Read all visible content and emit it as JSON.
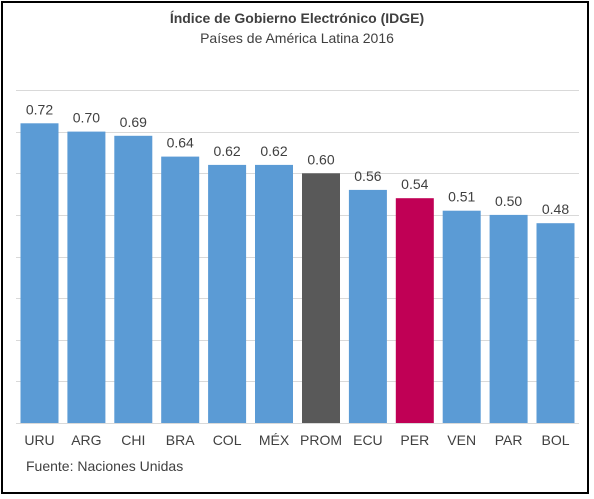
{
  "chart_data": {
    "type": "bar",
    "title": "Índice de Gobierno Electrónico (IDGE)",
    "subtitle": "Países de América Latina 2016",
    "source": "Fuente: Naciones Unidas",
    "categories": [
      "URU",
      "ARG",
      "CHI",
      "BRA",
      "COL",
      "MÉX",
      "PROM",
      "ECU",
      "PER",
      "VEN",
      "PAR",
      "BOL"
    ],
    "values": [
      0.72,
      0.7,
      0.69,
      0.64,
      0.62,
      0.62,
      0.6,
      0.56,
      0.54,
      0.51,
      0.5,
      0.48
    ],
    "value_labels": [
      "0.72",
      "0.70",
      "0.69",
      "0.64",
      "0.62",
      "0.62",
      "0.60",
      "0.56",
      "0.54",
      "0.51",
      "0.50",
      "0.48"
    ],
    "bar_colors": [
      "#5b9bd5",
      "#5b9bd5",
      "#5b9bd5",
      "#5b9bd5",
      "#5b9bd5",
      "#5b9bd5",
      "#595959",
      "#5b9bd5",
      "#c00055",
      "#5b9bd5",
      "#5b9bd5",
      "#5b9bd5"
    ],
    "ylim": [
      0,
      0.8
    ],
    "gridline_step": 0.1,
    "grid": true,
    "y_tick_labels_shown": false,
    "xlabel": "",
    "ylabel": ""
  }
}
